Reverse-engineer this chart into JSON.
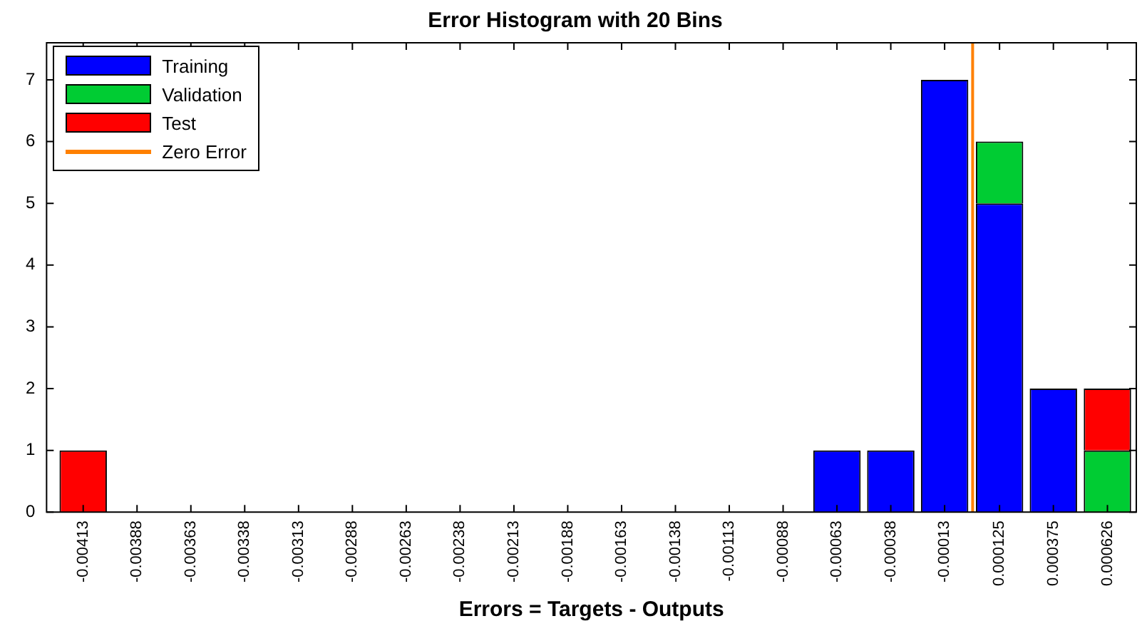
{
  "chart_data": {
    "type": "bar",
    "stacked": true,
    "title": "Error Histogram with 20 Bins",
    "xlabel": "Errors = Targets - Outputs",
    "x": [
      -0.00413,
      -0.00388,
      -0.00363,
      -0.00338,
      -0.00313,
      -0.00288,
      -0.00263,
      -0.00238,
      -0.00213,
      -0.00188,
      -0.00163,
      -0.00138,
      -0.00113,
      -0.00088,
      -0.00063,
      -0.00038,
      -0.00013,
      0.000125,
      0.000375,
      0.000626
    ],
    "series": [
      {
        "name": "Training",
        "color": "#0000ff",
        "values": [
          0,
          0,
          0,
          0,
          0,
          0,
          0,
          0,
          0,
          0,
          0,
          0,
          0,
          0,
          1,
          1,
          7,
          5,
          2,
          0
        ]
      },
      {
        "name": "Validation",
        "color": "#00cc33",
        "values": [
          0,
          0,
          0,
          0,
          0,
          0,
          0,
          0,
          0,
          0,
          0,
          0,
          0,
          0,
          0,
          0,
          0,
          1,
          0,
          1
        ]
      },
      {
        "name": "Test",
        "color": "#ff0000",
        "values": [
          1,
          0,
          0,
          0,
          0,
          0,
          0,
          0,
          0,
          0,
          0,
          0,
          0,
          0,
          0,
          0,
          0,
          0,
          0,
          1
        ]
      },
      {
        "name": "Zero Error",
        "type": "line",
        "color": "#ff8000",
        "x": [
          0,
          0
        ],
        "values": [
          0,
          7.6
        ]
      }
    ],
    "xlim": [
      -0.0043,
      0.00076
    ],
    "xticks": [
      -0.00413,
      -0.00388,
      -0.00363,
      -0.00338,
      -0.00313,
      -0.00288,
      -0.00263,
      -0.00238,
      -0.00213,
      -0.00188,
      -0.00163,
      -0.00138,
      -0.00113,
      -0.00088,
      -0.00063,
      -0.00038,
      -0.00013,
      0.000125,
      0.000375,
      0.000626
    ],
    "ylim": [
      0,
      7.6
    ],
    "yticks": [
      0,
      1,
      2,
      3,
      4,
      5,
      6,
      7
    ],
    "grid": false,
    "legend": "top left"
  }
}
